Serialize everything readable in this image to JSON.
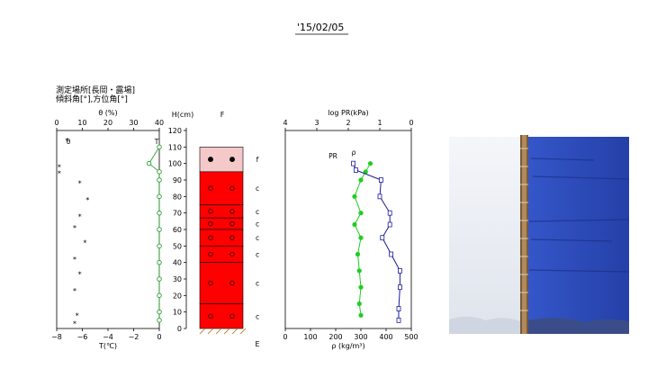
{
  "header": {
    "date": "'15/02/05",
    "site_line": "測定場所[長岡・露場]",
    "angle_line": "傾斜角[°],方位角[°]"
  },
  "colors": {
    "temperature": "#2aa02a",
    "theta": "#000000",
    "pr": "#22cc22",
    "density": "#1a1a9c",
    "layer_red": "#ff0000",
    "layer_top": "#f5c9c9",
    "photo_snow": "#e9eef5",
    "photo_blue": "#2f4fc0"
  },
  "chart_data": [
    {
      "type": "scatter",
      "name": "temperature-theta",
      "top_axis_label": "θ (%)",
      "top_ticks": [
        "0",
        "10",
        "20",
        "30",
        "40"
      ],
      "top_tick_values": [
        0,
        10,
        20,
        30,
        40
      ],
      "bottom_axis_label": "T(℃)",
      "bottom_ticks": [
        "−8",
        "−6",
        "−4",
        "−2",
        "0"
      ],
      "bottom_tick_values": [
        -8,
        -6,
        -4,
        -2,
        0
      ],
      "series_labels": {
        "theta": "θ",
        "temperature": "T"
      },
      "temperature": [
        {
          "h": 110,
          "t": 0.0
        },
        {
          "h": 100,
          "t": -0.8
        },
        {
          "h": 95,
          "t": 0.0
        },
        {
          "h": 90,
          "t": 0.0
        },
        {
          "h": 80,
          "t": 0.0
        },
        {
          "h": 70,
          "t": 0.0
        },
        {
          "h": 60,
          "t": 0.0
        },
        {
          "h": 50,
          "t": 0.0
        },
        {
          "h": 40,
          "t": 0.0
        },
        {
          "h": 30,
          "t": 0.0
        },
        {
          "h": 20,
          "t": 0.0
        },
        {
          "h": 10,
          "t": 0.0
        },
        {
          "h": 5,
          "t": 0.0
        }
      ],
      "theta": [
        {
          "h": 114,
          "v": 4
        },
        {
          "h": 98,
          "v": 1
        },
        {
          "h": 94,
          "v": 1
        },
        {
          "h": 88,
          "v": 9
        },
        {
          "h": 78,
          "v": 12
        },
        {
          "h": 68,
          "v": 9
        },
        {
          "h": 61,
          "v": 7
        },
        {
          "h": 52,
          "v": 11
        },
        {
          "h": 42,
          "v": 7
        },
        {
          "h": 33,
          "v": 9
        },
        {
          "h": 23,
          "v": 7
        },
        {
          "h": 8,
          "v": 8
        },
        {
          "h": 3,
          "v": 7
        }
      ]
    },
    {
      "type": "bar",
      "name": "stratigraphy",
      "ylabel": "H(cm)",
      "yticks": [
        "0",
        "10",
        "20",
        "30",
        "40",
        "50",
        "60",
        "70",
        "80",
        "90",
        "100",
        "110",
        "120"
      ],
      "ytick_values": [
        0,
        10,
        20,
        30,
        40,
        50,
        60,
        70,
        80,
        90,
        100,
        110,
        120
      ],
      "ylim": [
        0,
        120
      ],
      "column_label": "F",
      "bottom_label": "E",
      "snow_top": 110,
      "layers": [
        {
          "bottom": 95,
          "top": 110,
          "color": "top",
          "code": "f",
          "grain": "filled"
        },
        {
          "bottom": 75,
          "top": 95,
          "color": "red",
          "code": "c",
          "grain": "open"
        },
        {
          "bottom": 67,
          "top": 75,
          "color": "red",
          "code": "c",
          "grain": "open"
        },
        {
          "bottom": 60,
          "top": 67,
          "color": "red",
          "code": "c",
          "grain": "open"
        },
        {
          "bottom": 50,
          "top": 60,
          "color": "red",
          "code": "c",
          "grain": "open"
        },
        {
          "bottom": 40,
          "top": 50,
          "color": "red",
          "code": "c",
          "grain": "open"
        },
        {
          "bottom": 15,
          "top": 40,
          "color": "red",
          "code": "c",
          "grain": "open"
        },
        {
          "bottom": 0,
          "top": 15,
          "color": "red",
          "code": "c",
          "grain": "open"
        }
      ]
    },
    {
      "type": "line",
      "name": "pr-density",
      "top_axis_label": "log PR(kPa)",
      "top_ticks": [
        "0",
        "1",
        "2",
        "3",
        "4"
      ],
      "top_tick_values": [
        0,
        1,
        2,
        3,
        4
      ],
      "bottom_axis_label": "ρ (kg/m³)",
      "bottom_ticks": [
        "0",
        "100",
        "200",
        "300",
        "400",
        "500"
      ],
      "bottom_tick_values": [
        0,
        100,
        200,
        300,
        400,
        500
      ],
      "series": [
        {
          "name": "PR",
          "unit": "log kPa",
          "points": [
            {
              "h": 100,
              "v": 1.3
            },
            {
              "h": 95,
              "v": 1.45
            },
            {
              "h": 90,
              "v": 1.6
            },
            {
              "h": 80,
              "v": 1.8
            },
            {
              "h": 70,
              "v": 1.6
            },
            {
              "h": 63,
              "v": 1.8
            },
            {
              "h": 55,
              "v": 1.6
            },
            {
              "h": 45,
              "v": 1.7
            },
            {
              "h": 35,
              "v": 1.65
            },
            {
              "h": 25,
              "v": 1.6
            },
            {
              "h": 15,
              "v": 1.65
            },
            {
              "h": 8,
              "v": 1.6
            }
          ]
        },
        {
          "name": "ρ",
          "unit": "kg/m³",
          "points": [
            {
              "h": 100,
              "v": 270
            },
            {
              "h": 96,
              "v": 280
            },
            {
              "h": 90,
              "v": 380
            },
            {
              "h": 80,
              "v": 375
            },
            {
              "h": 70,
              "v": 415
            },
            {
              "h": 63,
              "v": 415
            },
            {
              "h": 55,
              "v": 385
            },
            {
              "h": 45,
              "v": 420
            },
            {
              "h": 35,
              "v": 455
            },
            {
              "h": 25,
              "v": 455
            },
            {
              "h": 12,
              "v": 450
            },
            {
              "h": 5,
              "v": 450
            }
          ]
        }
      ]
    }
  ]
}
